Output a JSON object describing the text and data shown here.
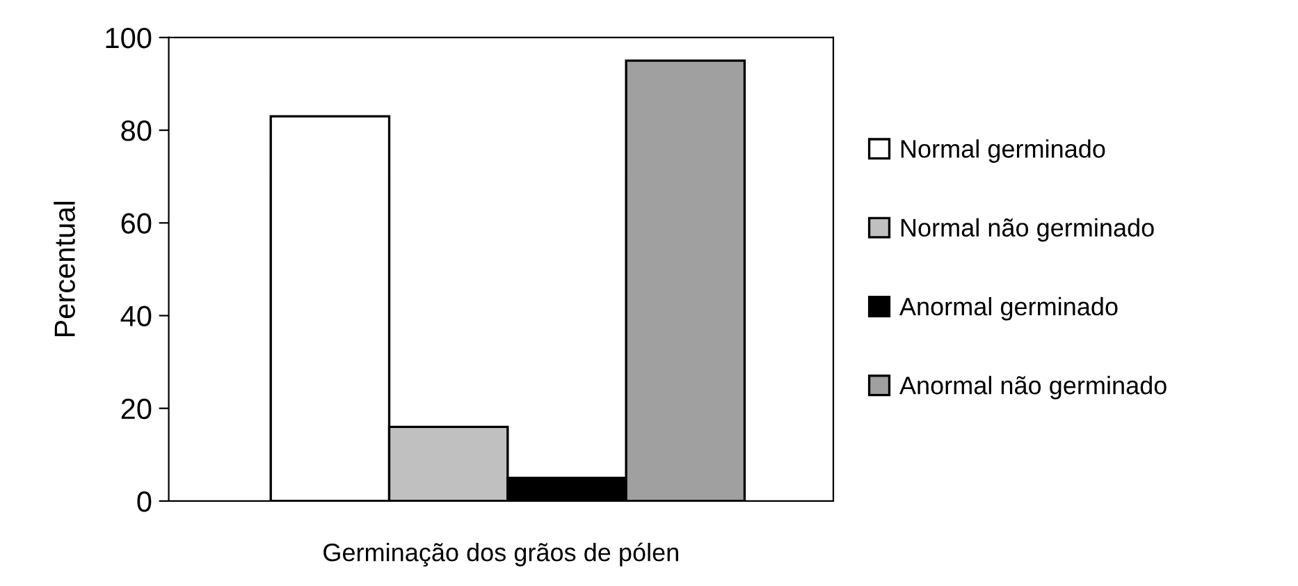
{
  "chart_data": {
    "type": "bar",
    "xlabel": "Germinação dos grãos de pólen",
    "ylabel": "Percentual",
    "categories": [
      null
    ],
    "series": [
      {
        "name": "Normal germinado",
        "color": "#ffffff",
        "values": [
          83
        ]
      },
      {
        "name": "Normal não germinado",
        "color": "#c0c0c0",
        "values": [
          16
        ]
      },
      {
        "name": "Anormal germinado",
        "color": "#000000",
        "values": [
          5
        ]
      },
      {
        "name": "Anormal não germinado",
        "color": "#a0a0a0",
        "values": [
          95
        ]
      }
    ],
    "ylim": [
      0,
      100
    ],
    "yticks": [
      0,
      20,
      40,
      60,
      80,
      100
    ],
    "grid": false,
    "legend": "right"
  }
}
